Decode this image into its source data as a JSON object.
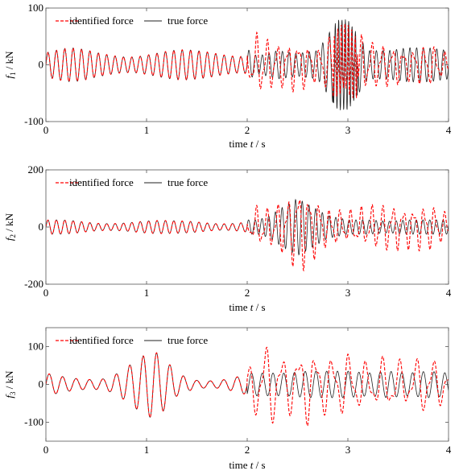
{
  "chart_data": [
    {
      "type": "line",
      "xlabel_parts": {
        "pre": "time ",
        "italic": "t",
        "post": " / s"
      },
      "ylabel_parts": {
        "italic": "f",
        "sub": "1",
        "post": " / kN"
      },
      "xlim": [
        0,
        4
      ],
      "ylim": [
        -100,
        100
      ],
      "x_ticks": [
        "0",
        "1",
        "2",
        "3",
        "4"
      ],
      "y_ticks": [
        "-100",
        "0",
        "100"
      ],
      "legend_position": "top-left",
      "series": [
        {
          "name": "identified force",
          "color": "#ff0000",
          "style": "dashed",
          "t": [
            0,
            0.25,
            0.5,
            0.75,
            1.0,
            1.25,
            1.5,
            1.75,
            2.0,
            2.1,
            2.3,
            2.5,
            2.7,
            2.9,
            3.0,
            3.2,
            3.4,
            3.6,
            3.8,
            4.0
          ],
          "env": [
            28,
            30,
            26,
            27,
            28,
            27,
            26,
            28,
            30,
            60,
            40,
            50,
            30,
            70,
            75,
            45,
            40,
            30,
            40,
            20
          ]
        },
        {
          "name": "true force",
          "color": "#222222",
          "style": "solid",
          "t": [
            0,
            0.25,
            0.5,
            0.75,
            1.0,
            1.25,
            1.5,
            1.75,
            2.0,
            2.1,
            2.3,
            2.5,
            2.7,
            2.9,
            3.0,
            3.2,
            3.4,
            3.6,
            3.8,
            4.0
          ],
          "env": [
            28,
            30,
            26,
            27,
            28,
            27,
            26,
            28,
            28,
            15,
            25,
            20,
            25,
            80,
            80,
            25,
            25,
            30,
            30,
            25
          ]
        }
      ]
    },
    {
      "type": "line",
      "xlabel_parts": {
        "pre": "time ",
        "italic": "t",
        "post": " / s"
      },
      "ylabel_parts": {
        "italic": "f",
        "sub": "2",
        "post": " / kN"
      },
      "xlim": [
        0,
        4
      ],
      "ylim": [
        -200,
        200
      ],
      "x_ticks": [
        "0",
        "1",
        "2",
        "3",
        "4"
      ],
      "y_ticks": [
        "-200",
        "0",
        "200"
      ],
      "legend_position": "top-left",
      "series": [
        {
          "name": "identified force",
          "color": "#ff0000",
          "style": "dashed",
          "t": [
            0,
            0.25,
            0.5,
            0.75,
            1.0,
            1.25,
            1.5,
            1.75,
            2.0,
            2.1,
            2.2,
            2.4,
            2.5,
            2.6,
            2.8,
            3.0,
            3.2,
            3.4,
            3.6,
            3.8,
            4.0
          ],
          "env": [
            25,
            25,
            22,
            25,
            25,
            22,
            24,
            22,
            25,
            80,
            70,
            110,
            170,
            140,
            70,
            60,
            80,
            90,
            80,
            90,
            50
          ]
        },
        {
          "name": "true force",
          "color": "#222222",
          "style": "solid",
          "t": [
            0,
            0.25,
            0.5,
            0.75,
            1.0,
            1.25,
            1.5,
            1.75,
            2.0,
            2.1,
            2.2,
            2.4,
            2.5,
            2.6,
            2.8,
            3.0,
            3.2,
            3.4,
            3.6,
            3.8,
            4.0
          ],
          "env": [
            25,
            25,
            22,
            25,
            25,
            22,
            24,
            22,
            25,
            25,
            35,
            80,
            100,
            80,
            40,
            25,
            25,
            20,
            25,
            25,
            25
          ]
        }
      ]
    },
    {
      "type": "line",
      "xlabel_parts": {
        "pre": "time ",
        "italic": "t",
        "post": " / s"
      },
      "ylabel_parts": {
        "italic": "f",
        "sub": "3",
        "post": " / kN"
      },
      "xlim": [
        0,
        4
      ],
      "ylim": [
        -150,
        150
      ],
      "x_ticks": [
        "0",
        "1",
        "2",
        "3",
        "4"
      ],
      "y_ticks": [
        "-100",
        "0",
        "100"
      ],
      "legend_position": "top-left",
      "series": [
        {
          "name": "identified force",
          "color": "#ff0000",
          "style": "dashed",
          "t": [
            0,
            0.2,
            0.4,
            0.6,
            0.8,
            0.9,
            1.0,
            1.05,
            1.1,
            1.2,
            1.3,
            1.5,
            1.7,
            1.9,
            2.0,
            2.1,
            2.2,
            2.4,
            2.6,
            2.8,
            3.0,
            3.2,
            3.4,
            3.6,
            3.8,
            4.0
          ],
          "env": [
            30,
            25,
            25,
            28,
            55,
            70,
            80,
            90,
            85,
            70,
            40,
            20,
            18,
            25,
            30,
            110,
            120,
            80,
            110,
            80,
            90,
            60,
            80,
            60,
            90,
            40
          ]
        },
        {
          "name": "true force",
          "color": "#222222",
          "style": "solid",
          "t": [
            0,
            0.2,
            0.4,
            0.6,
            0.8,
            0.9,
            1.0,
            1.05,
            1.1,
            1.2,
            1.3,
            1.5,
            1.7,
            1.9,
            2.0,
            2.1,
            2.2,
            2.4,
            2.6,
            2.8,
            3.0,
            3.2,
            3.4,
            3.6,
            3.8,
            4.0
          ],
          "env": [
            30,
            25,
            25,
            28,
            55,
            70,
            80,
            90,
            85,
            70,
            40,
            20,
            18,
            25,
            30,
            30,
            30,
            30,
            35,
            35,
            35,
            30,
            35,
            30,
            35,
            30
          ]
        }
      ]
    }
  ]
}
